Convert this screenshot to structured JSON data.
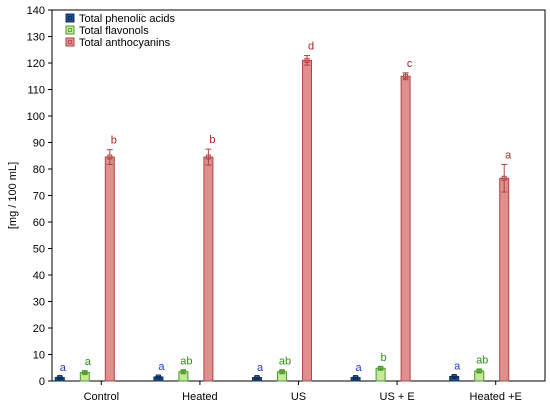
{
  "chart_data": {
    "type": "bar",
    "ylabel": "[mg / 100 mL]",
    "ylim": [
      0,
      140
    ],
    "yticks": [
      0,
      10,
      20,
      30,
      40,
      50,
      60,
      70,
      80,
      90,
      100,
      110,
      120,
      130,
      140
    ],
    "categories": [
      "Control",
      "Heated",
      "US",
      "US + E",
      "Heated +E"
    ],
    "legend_position": "top-left",
    "grid": false,
    "series": [
      {
        "name": "Total phenolic acids",
        "fill": "#1f4e8c",
        "stroke": "#0d2f5c",
        "label_color": "#1f3cc8",
        "values": [
          1.3,
          1.5,
          1.3,
          1.3,
          1.7
        ],
        "errors": [
          0.3,
          0.3,
          0.3,
          0.3,
          0.3
        ],
        "letters": [
          "a",
          "a",
          "a",
          "a",
          "a"
        ]
      },
      {
        "name": "Total flavonols",
        "fill": "#c5e89a",
        "stroke": "#4a9a2a",
        "label_color": "#2e8b1a",
        "values": [
          3.2,
          3.5,
          3.5,
          4.8,
          3.8
        ],
        "errors": [
          0.5,
          0.5,
          0.5,
          0.5,
          0.5
        ],
        "letters": [
          "a",
          "ab",
          "ab",
          "b",
          "ab"
        ]
      },
      {
        "name": "Total anthocyanins",
        "fill": "#e08e8e",
        "stroke": "#b04444",
        "label_color": "#b01e1e",
        "values": [
          84.5,
          84.5,
          121,
          115,
          76.5
        ],
        "errors": [
          2.8,
          3.0,
          1.8,
          1.3,
          5.2
        ],
        "letters": [
          "b",
          "b",
          "d",
          "c",
          "a"
        ]
      }
    ]
  }
}
